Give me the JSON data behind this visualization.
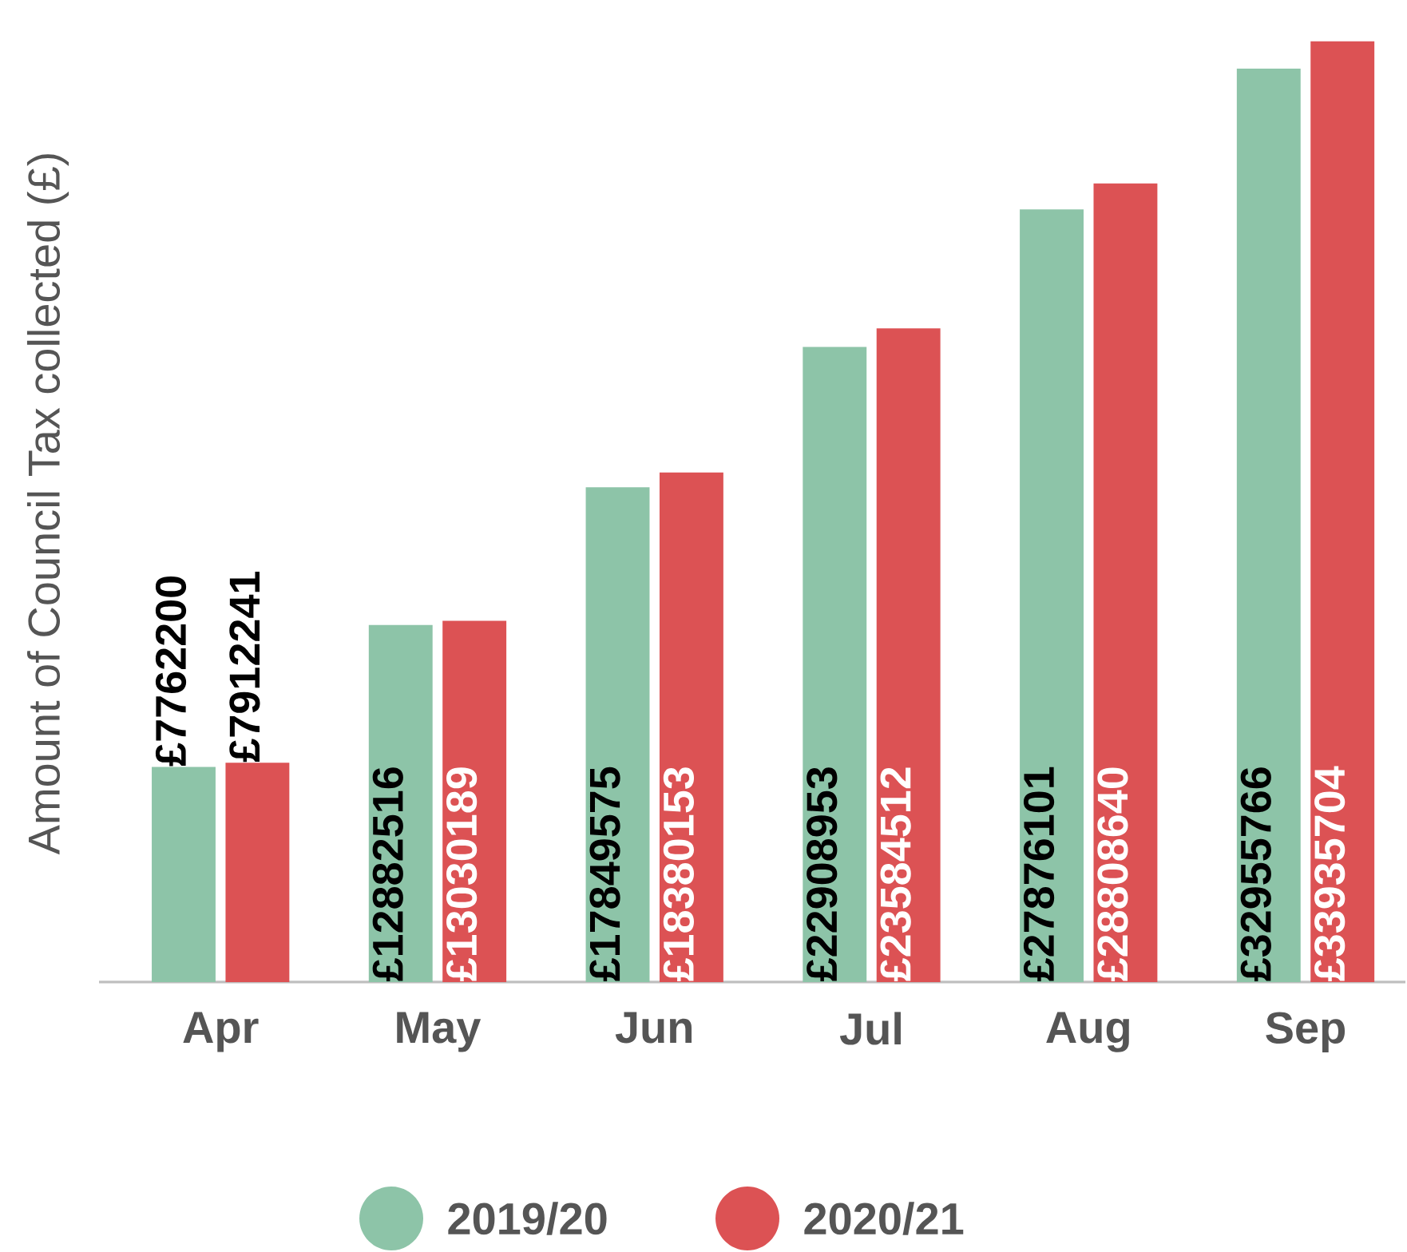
{
  "chart_data": {
    "type": "bar",
    "ylabel": "Amount of Council Tax collected (£)",
    "categories": [
      "Apr",
      "May",
      "Jun",
      "Jul",
      "Aug",
      "Sep"
    ],
    "series": [
      {
        "name": "2019/20",
        "color": "#8dc4a8",
        "values": [
          7762200,
          12882516,
          17849575,
          22908953,
          27876101,
          32955766
        ],
        "value_labels": [
          "£7762200",
          "£12882516",
          "£17849575",
          "£22908953",
          "£27876101",
          "£32955766"
        ]
      },
      {
        "name": "2020/21",
        "color": "#dc5254",
        "values": [
          7912241,
          13030189,
          18380153,
          23584512,
          28808640,
          33935704
        ],
        "value_labels": [
          "£7912241",
          "£13030189",
          "£18380153",
          "£23584512",
          "£28808640",
          "£33935704"
        ]
      }
    ],
    "legend": "bottom"
  }
}
